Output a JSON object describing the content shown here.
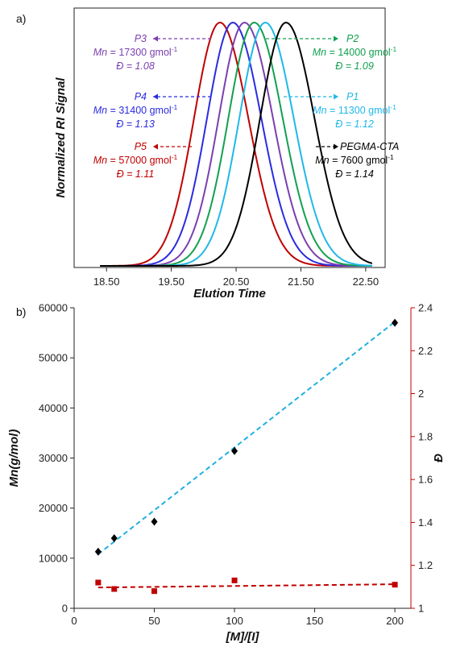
{
  "chart_data": [
    {
      "panel_label": "a)",
      "type": "line",
      "xlabel": "Elution Time",
      "ylabel": "Normalized RI Signal",
      "xlim": [
        18.0,
        22.8
      ],
      "x_ticks": [
        "18.50",
        "19.50",
        "20.50",
        "21.50",
        "22.50"
      ],
      "x_tick_values": [
        18.5,
        19.5,
        20.5,
        21.5,
        22.5
      ],
      "series": [
        {
          "name": "P5",
          "color": "#c00000",
          "peak_x": 20.25,
          "width_left": 0.4,
          "width_right": 0.44
        },
        {
          "name": "P4",
          "color": "#2b2be0",
          "peak_x": 20.45,
          "width_left": 0.4,
          "width_right": 0.44
        },
        {
          "name": "P3",
          "color": "#7b3fb0",
          "peak_x": 20.63,
          "width_left": 0.4,
          "width_right": 0.44
        },
        {
          "name": "P2",
          "color": "#12a050",
          "peak_x": 20.78,
          "width_left": 0.4,
          "width_right": 0.44
        },
        {
          "name": "P1",
          "color": "#20b8e8",
          "peak_x": 20.95,
          "width_left": 0.4,
          "width_right": 0.44
        },
        {
          "name": "PEGMA-CTA",
          "color": "#000000",
          "peak_x": 21.27,
          "width_left": 0.4,
          "width_right": 0.44
        }
      ],
      "annotations": [
        {
          "sample": "P3",
          "mn_label": "Mn",
          "mn_text": " = 17300 gmol",
          "mn_exp": "-1",
          "d_symbol": "Đ",
          "d_text": " = 1.08",
          "color": "#7b3fb0",
          "side": "left"
        },
        {
          "sample": "P4",
          "mn_label": "Mn",
          "mn_text": " = 31400 gmol",
          "mn_exp": "-1",
          "d_symbol": "Đ",
          "d_text": " = 1.13",
          "color": "#2b2be0",
          "side": "left"
        },
        {
          "sample": "P5",
          "mn_label": "Mn",
          "mn_text": " = 57000 gmol",
          "mn_exp": "-1",
          "d_symbol": "Đ",
          "d_text": " = 1.11",
          "color": "#c00000",
          "side": "left"
        },
        {
          "sample": "P2",
          "mn_label": "Mn",
          "mn_text": " = 14000 gmol",
          "mn_exp": "-1",
          "d_symbol": "Đ",
          "d_text": " = 1.09",
          "color": "#12a050",
          "side": "right"
        },
        {
          "sample": "P1",
          "mn_label": "Mn",
          "mn_text": " = 11300 gmol",
          "mn_exp": "-1",
          "d_symbol": "Đ",
          "d_text": " = 1.12",
          "color": "#20b8e8",
          "side": "right"
        },
        {
          "sample": "PEGMA-CTA",
          "mn_label": "Mn",
          "mn_text": " = 7600 gmol",
          "mn_exp": "-1",
          "d_symbol": "Đ",
          "d_text": " = 1.14",
          "color": "#000000",
          "side": "right"
        }
      ]
    },
    {
      "panel_label": "b)",
      "type": "scatter",
      "xlabel": "[M]/[I]",
      "ylabel": "Mn(g/mol)",
      "y2label": "Đ",
      "xlim": [
        0,
        210
      ],
      "ylim": [
        0,
        60000
      ],
      "y2lim": [
        1,
        2.4
      ],
      "x_ticks": [
        "0",
        "50",
        "100",
        "150",
        "200"
      ],
      "x_tick_values": [
        0,
        50,
        100,
        150,
        200
      ],
      "y_ticks": [
        "0",
        "10000",
        "20000",
        "30000",
        "40000",
        "50000",
        "60000"
      ],
      "y_tick_values": [
        0,
        10000,
        20000,
        30000,
        40000,
        50000,
        60000
      ],
      "y2_ticks": [
        "1",
        "1.2",
        "1.4",
        "1.6",
        "1.8",
        "2",
        "2.2",
        "2.4"
      ],
      "y2_tick_values": [
        1,
        1.2,
        1.4,
        1.6,
        1.8,
        2,
        2.2,
        2.4
      ],
      "series": [
        {
          "axis": "left",
          "marker": "diamond",
          "color": "#000000",
          "x": [
            15,
            25,
            50,
            100,
            200
          ],
          "y": [
            11300,
            14000,
            17300,
            31400,
            57000
          ]
        },
        {
          "axis": "right",
          "marker": "square",
          "color": "#c00000",
          "x": [
            15,
            25,
            50,
            100,
            200
          ],
          "y": [
            1.12,
            1.09,
            1.08,
            1.13,
            1.11
          ]
        }
      ],
      "fits": [
        {
          "axis": "left",
          "color": "#20b0e0",
          "x": [
            15,
            200
          ],
          "y": [
            10800,
            57200
          ]
        },
        {
          "axis": "right",
          "color": "#c00000",
          "x": [
            15,
            200
          ],
          "y": [
            1.097,
            1.112
          ]
        }
      ]
    }
  ]
}
